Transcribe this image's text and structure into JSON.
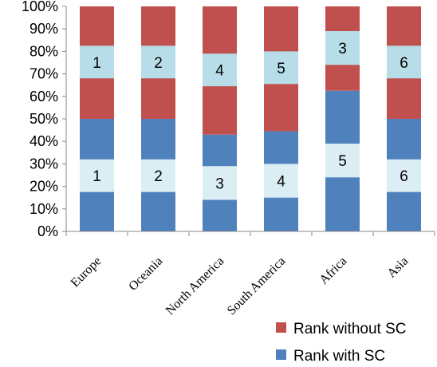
{
  "chart_data": {
    "type": "bar",
    "stacked": true,
    "categories": [
      "Europe",
      "Oceania",
      "North America",
      "South America",
      "Africa",
      "Asia"
    ],
    "yticks": [
      "0%",
      "10%",
      "20%",
      "30%",
      "40%",
      "50%",
      "60%",
      "70%",
      "80%",
      "90%",
      "100%"
    ],
    "ylim": [
      0,
      100
    ],
    "grid": false,
    "legend_position": "bottom-right",
    "series": [
      {
        "name": "Rank with SC",
        "color": "#4f81bd",
        "label_color": "#daeef3",
        "values": [
          50,
          50,
          43,
          44.5,
          62.5,
          50
        ],
        "ranks": [
          "1",
          "2",
          "3",
          "4",
          "5",
          "6"
        ],
        "rank_band": [
          [
            17.5,
            32
          ],
          [
            17.5,
            32
          ],
          [
            14,
            29
          ],
          [
            15,
            30
          ],
          [
            24,
            39
          ],
          [
            17.5,
            32
          ]
        ]
      },
      {
        "name": "Rank without SC",
        "color": "#c0504d",
        "label_color": "#b7dee8",
        "values": [
          50,
          50,
          57,
          55.5,
          37.5,
          50
        ],
        "ranks": [
          "1",
          "2",
          "4",
          "5",
          "3",
          "6"
        ],
        "rank_band": [
          [
            68,
            82.5
          ],
          [
            68,
            82.5
          ],
          [
            64.5,
            79
          ],
          [
            65.5,
            80
          ],
          [
            74,
            89
          ],
          [
            68,
            82.5
          ]
        ]
      }
    ]
  }
}
